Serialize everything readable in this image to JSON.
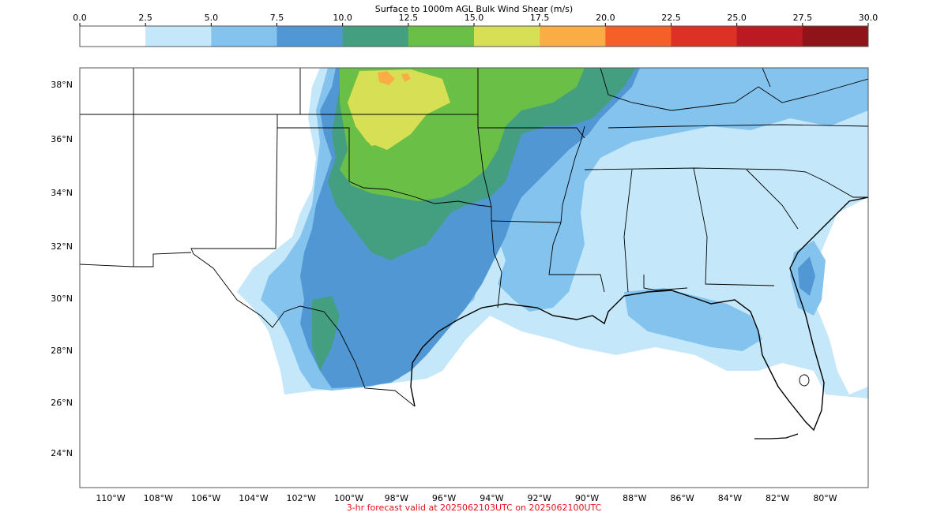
{
  "colorbar": {
    "title": "Surface to 1000m AGL Bulk Wind Shear (m/s)",
    "ticks": [
      "0.0",
      "2.5",
      "5.0",
      "7.5",
      "10.0",
      "12.5",
      "15.0",
      "17.5",
      "20.0",
      "22.5",
      "25.0",
      "27.5",
      "30.0"
    ],
    "colors": [
      "#ffffff",
      "#c4e7f9",
      "#84c3ed",
      "#5197d4",
      "#449f80",
      "#6abf46",
      "#d7e055",
      "#f9ad44",
      "#f46028",
      "#de3125",
      "#bc1a23",
      "#8e1419"
    ]
  },
  "map": {
    "lat_labels": [
      "38°N",
      "36°N",
      "34°N",
      "32°N",
      "30°N",
      "28°N",
      "26°N",
      "24°N"
    ],
    "lon_labels": [
      "110°W",
      "108°W",
      "106°W",
      "104°W",
      "102°W",
      "100°W",
      "98°W",
      "96°W",
      "94°W",
      "92°W",
      "90°W",
      "88°W",
      "86°W",
      "84°W",
      "82°W",
      "80°W"
    ]
  },
  "footer": {
    "forecast_text": "3-hr forecast valid at 2025062103UTC on 2025062100UTC",
    "color": "#e8101a"
  }
}
